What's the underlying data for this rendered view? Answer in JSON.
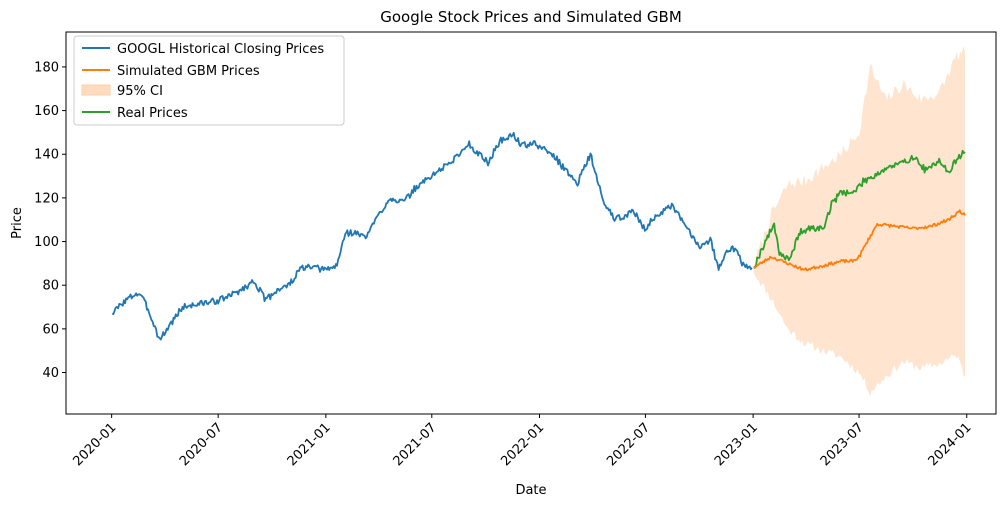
{
  "chart_data": {
    "type": "line",
    "title": "Google Stock Prices and Simulated GBM",
    "xlabel": "Date",
    "ylabel": "Price",
    "xlim": [
      "2019-10-15",
      "2024-02-20"
    ],
    "ylim": [
      21,
      196
    ],
    "x_ticks": [
      "2020-01",
      "2020-07",
      "2021-01",
      "2021-07",
      "2022-01",
      "2022-07",
      "2023-01",
      "2023-07",
      "2024-01"
    ],
    "y_ticks": [
      40,
      60,
      80,
      100,
      120,
      140,
      160,
      180
    ],
    "grid": false,
    "legend_position": "top-left",
    "legend": [
      "GOOGL Historical Closing Prices",
      "Simulated GBM Prices",
      "95% CI",
      "Real Prices"
    ],
    "colors": {
      "historical": "#1f77b4",
      "simulated": "#ff7f0e",
      "ci": "#ffdcbf",
      "real": "#2ca02c"
    },
    "series": [
      {
        "name": "GOOGL Historical Closing Prices",
        "x": [
          "2020-01-02",
          "2020-01-20",
          "2020-02-10",
          "2020-02-19",
          "2020-03-05",
          "2020-03-23",
          "2020-04-10",
          "2020-05-01",
          "2020-05-20",
          "2020-06-10",
          "2020-07-01",
          "2020-07-20",
          "2020-08-10",
          "2020-09-01",
          "2020-09-20",
          "2020-10-10",
          "2020-10-30",
          "2020-11-20",
          "2020-12-10",
          "2021-01-01",
          "2021-01-20",
          "2021-02-03",
          "2021-02-20",
          "2021-03-10",
          "2021-04-01",
          "2021-04-20",
          "2021-05-15",
          "2021-06-01",
          "2021-06-20",
          "2021-07-10",
          "2021-08-01",
          "2021-08-20",
          "2021-09-01",
          "2021-09-20",
          "2021-10-05",
          "2021-10-25",
          "2021-11-18",
          "2021-12-01",
          "2021-12-20",
          "2022-01-05",
          "2022-01-27",
          "2022-02-10",
          "2022-03-07",
          "2022-03-29",
          "2022-04-20",
          "2022-05-11",
          "2022-06-10",
          "2022-06-30",
          "2022-07-20",
          "2022-08-15",
          "2022-09-01",
          "2022-09-30",
          "2022-10-20",
          "2022-11-03",
          "2022-11-15",
          "2022-12-01",
          "2022-12-15",
          "2022-12-30"
        ],
        "values": [
          67,
          72,
          76,
          76,
          68,
          55,
          62,
          70,
          71,
          72,
          73,
          75,
          78,
          82,
          73,
          78,
          80,
          88,
          88,
          87,
          89,
          104,
          104,
          102,
          112,
          120,
          118,
          124,
          128,
          132,
          136,
          141,
          145,
          140,
          136,
          146,
          149,
          144,
          145,
          143,
          139,
          134,
          127,
          140,
          118,
          110,
          114,
          106,
          112,
          116,
          110,
          98,
          101,
          87,
          96,
          97,
          89,
          88
        ]
      },
      {
        "name": "Simulated GBM Prices",
        "x": [
          "2023-01-02",
          "2023-02-01",
          "2023-03-01",
          "2023-03-30",
          "2023-05-01",
          "2023-06-01",
          "2023-06-20",
          "2023-07-01",
          "2023-07-15",
          "2023-08-01",
          "2023-09-01",
          "2023-10-01",
          "2023-11-01",
          "2023-12-01",
          "2023-12-20",
          "2023-12-29"
        ],
        "values": [
          88,
          93,
          90,
          87,
          89,
          91,
          91,
          93,
          100,
          108,
          107,
          106,
          107,
          110,
          114,
          112
        ]
      },
      {
        "name": "95% CI",
        "x": [
          "2023-01-02",
          "2023-02-01",
          "2023-03-01",
          "2023-04-01",
          "2023-05-01",
          "2023-06-01",
          "2023-07-01",
          "2023-07-20",
          "2023-08-15",
          "2023-09-15",
          "2023-10-15",
          "2023-11-15",
          "2023-12-15",
          "2023-12-29"
        ],
        "upper": [
          89,
          112,
          126,
          128,
          134,
          140,
          150,
          180,
          165,
          172,
          165,
          168,
          185,
          187
        ],
        "lower": [
          86,
          74,
          60,
          53,
          50,
          47,
          40,
          31,
          38,
          45,
          42,
          44,
          48,
          38
        ]
      },
      {
        "name": "Real Prices",
        "x": [
          "2023-01-02",
          "2023-01-20",
          "2023-02-06",
          "2023-02-15",
          "2023-03-05",
          "2023-03-20",
          "2023-04-10",
          "2023-05-01",
          "2023-05-15",
          "2023-06-01",
          "2023-06-20",
          "2023-07-10",
          "2023-07-25",
          "2023-08-20",
          "2023-09-15",
          "2023-10-01",
          "2023-10-25",
          "2023-11-15",
          "2023-12-01",
          "2023-12-15",
          "2023-12-29"
        ],
        "values": [
          88,
          99,
          108,
          95,
          91,
          104,
          106,
          106,
          117,
          123,
          122,
          128,
          130,
          134,
          136,
          139,
          132,
          138,
          131,
          138,
          141
        ]
      }
    ]
  }
}
